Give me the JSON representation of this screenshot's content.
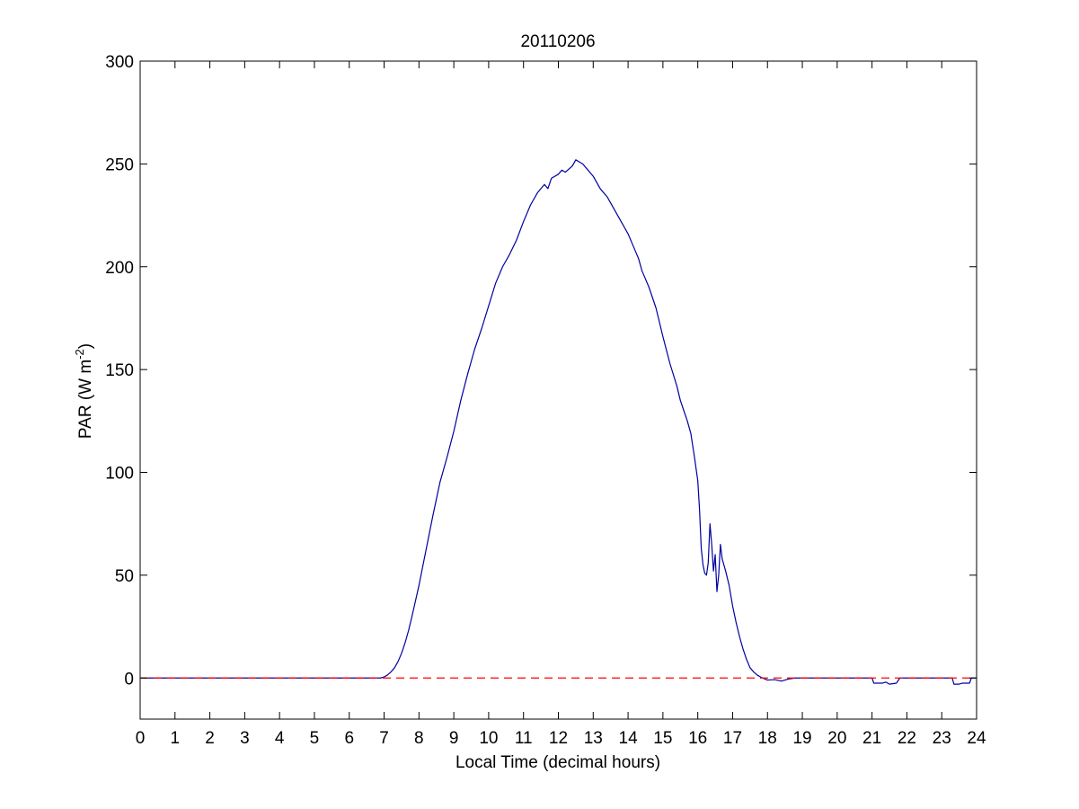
{
  "chart_data": {
    "type": "line",
    "title": "20110206",
    "xlabel": "Local Time (decimal hours)",
    "ylabel": {
      "base": "PAR (W m",
      "superscript": "-2",
      "suffix": ")"
    },
    "xlim": [
      0,
      24
    ],
    "ylim": [
      -20,
      300
    ],
    "xticks": [
      0,
      1,
      2,
      3,
      4,
      5,
      6,
      7,
      8,
      9,
      10,
      11,
      12,
      13,
      14,
      15,
      16,
      17,
      18,
      19,
      20,
      21,
      22,
      23,
      24
    ],
    "yticks": [
      0,
      50,
      100,
      150,
      200,
      250,
      300
    ],
    "grid": false,
    "legend": "none",
    "colors": {
      "series": "#0000a0",
      "reference": "#ff0000",
      "axes": "#000000"
    },
    "series": [
      {
        "style": "solid",
        "color": "#0000a0",
        "points": [
          [
            0,
            0
          ],
          [
            6.9,
            0
          ],
          [
            7.0,
            0.5
          ],
          [
            7.1,
            1.5
          ],
          [
            7.2,
            3
          ],
          [
            7.3,
            5
          ],
          [
            7.4,
            8
          ],
          [
            7.5,
            12
          ],
          [
            7.6,
            17
          ],
          [
            7.7,
            23
          ],
          [
            7.8,
            30
          ],
          [
            8.0,
            45
          ],
          [
            8.2,
            62
          ],
          [
            8.4,
            79
          ],
          [
            8.6,
            95
          ],
          [
            8.8,
            107
          ],
          [
            9.0,
            120
          ],
          [
            9.2,
            135
          ],
          [
            9.4,
            148
          ],
          [
            9.6,
            160
          ],
          [
            9.8,
            170
          ],
          [
            10.0,
            181
          ],
          [
            10.2,
            192
          ],
          [
            10.4,
            200
          ],
          [
            10.6,
            206
          ],
          [
            10.8,
            213
          ],
          [
            11.0,
            222
          ],
          [
            11.2,
            230
          ],
          [
            11.4,
            236
          ],
          [
            11.6,
            240
          ],
          [
            11.7,
            238
          ],
          [
            11.8,
            243
          ],
          [
            12.0,
            245
          ],
          [
            12.1,
            247
          ],
          [
            12.2,
            246
          ],
          [
            12.4,
            249
          ],
          [
            12.5,
            252
          ],
          [
            12.6,
            251
          ],
          [
            12.7,
            250
          ],
          [
            12.8,
            248
          ],
          [
            13.0,
            244
          ],
          [
            13.2,
            238
          ],
          [
            13.4,
            234
          ],
          [
            13.6,
            228
          ],
          [
            13.8,
            222
          ],
          [
            14.0,
            216
          ],
          [
            14.2,
            208
          ],
          [
            14.3,
            204
          ],
          [
            14.4,
            198
          ],
          [
            14.6,
            190
          ],
          [
            14.8,
            180
          ],
          [
            15.0,
            166
          ],
          [
            15.2,
            153
          ],
          [
            15.4,
            142
          ],
          [
            15.5,
            135
          ],
          [
            15.6,
            130
          ],
          [
            15.7,
            125
          ],
          [
            15.8,
            119
          ],
          [
            15.9,
            108
          ],
          [
            16.0,
            96
          ],
          [
            16.05,
            82
          ],
          [
            16.1,
            63
          ],
          [
            16.15,
            55
          ],
          [
            16.2,
            51
          ],
          [
            16.25,
            50
          ],
          [
            16.3,
            56
          ],
          [
            16.35,
            75
          ],
          [
            16.4,
            65
          ],
          [
            16.45,
            52
          ],
          [
            16.5,
            60
          ],
          [
            16.55,
            42
          ],
          [
            16.6,
            50
          ],
          [
            16.65,
            65
          ],
          [
            16.7,
            58
          ],
          [
            16.8,
            52
          ],
          [
            16.9,
            45
          ],
          [
            17.0,
            35
          ],
          [
            17.1,
            27
          ],
          [
            17.2,
            20
          ],
          [
            17.3,
            14
          ],
          [
            17.4,
            9
          ],
          [
            17.5,
            5
          ],
          [
            17.6,
            3
          ],
          [
            17.7,
            1.5
          ],
          [
            17.8,
            0.5
          ],
          [
            17.9,
            -0.3
          ],
          [
            18.0,
            -1
          ],
          [
            18.2,
            -0.8
          ],
          [
            18.4,
            -1.5
          ],
          [
            18.6,
            -0.5
          ],
          [
            18.8,
            0
          ],
          [
            21.0,
            0
          ],
          [
            21.05,
            -2.5
          ],
          [
            21.3,
            -2.5
          ],
          [
            21.4,
            -2
          ],
          [
            21.5,
            -3
          ],
          [
            21.7,
            -2.5
          ],
          [
            21.8,
            0
          ],
          [
            23.3,
            0
          ],
          [
            23.35,
            -3
          ],
          [
            23.5,
            -3
          ],
          [
            23.6,
            -2.5
          ],
          [
            23.8,
            -2.5
          ],
          [
            23.85,
            0
          ],
          [
            24,
            0
          ]
        ]
      },
      {
        "style": "dashed",
        "color": "#ff0000",
        "points": [
          [
            0,
            0
          ],
          [
            24,
            0
          ]
        ]
      }
    ]
  }
}
